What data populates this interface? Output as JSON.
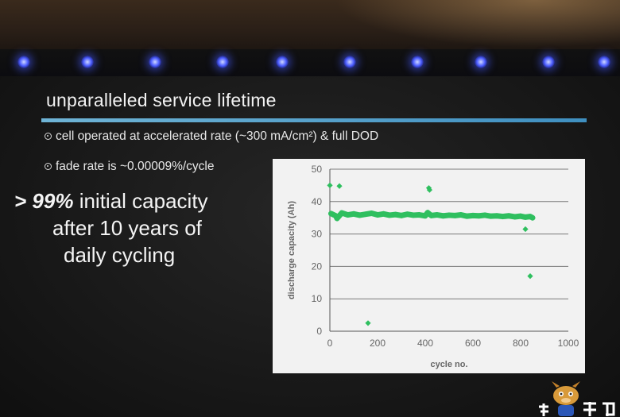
{
  "slide": {
    "title": "unparalleled service lifetime",
    "bullets": [
      "cell operated at accelerated rate (~300 mA/cm²) & full DOD",
      "fade rate is ~0.00009%/cycle"
    ],
    "headline": {
      "prefix": "> ",
      "emphasis": "99%",
      "line1_rest": " initial capacity",
      "line2": "after 10 years of",
      "line3": "daily cycling"
    }
  },
  "colors": {
    "title_rule": "#4a9ccc",
    "series": "#2fbf5f",
    "panel": "#f2f2f2",
    "grid": "#7a7a7a"
  },
  "chart_data": {
    "type": "scatter",
    "xlabel": "cycle no.",
    "ylabel": "discharge capacity (Ah)",
    "xlim": [
      0,
      1000
    ],
    "ylim": [
      0,
      50
    ],
    "x_ticks": [
      0,
      200,
      400,
      600,
      800,
      1000
    ],
    "y_ticks": [
      0,
      10,
      20,
      30,
      40,
      50
    ],
    "grid": "horizontal",
    "series": [
      {
        "color": "#2fbf5f",
        "points": [
          [
            0,
            45.0
          ],
          [
            40,
            44.8
          ],
          [
            415,
            44.2
          ],
          [
            418,
            43.6
          ],
          [
            160,
            2.5
          ],
          [
            820,
            31.5
          ],
          [
            840,
            17.0
          ],
          [
            5,
            36.3
          ],
          [
            25,
            35.6
          ],
          [
            30,
            34.8
          ],
          [
            50,
            36.5
          ],
          [
            75,
            35.9
          ],
          [
            100,
            36.2
          ],
          [
            125,
            35.8
          ],
          [
            150,
            36.1
          ],
          [
            175,
            36.4
          ],
          [
            200,
            35.9
          ],
          [
            225,
            36.2
          ],
          [
            250,
            35.8
          ],
          [
            275,
            36.0
          ],
          [
            300,
            35.7
          ],
          [
            325,
            36.1
          ],
          [
            350,
            35.8
          ],
          [
            375,
            35.9
          ],
          [
            400,
            35.6
          ],
          [
            410,
            36.6
          ],
          [
            425,
            35.7
          ],
          [
            450,
            35.9
          ],
          [
            475,
            35.6
          ],
          [
            500,
            35.8
          ],
          [
            525,
            35.7
          ],
          [
            550,
            35.9
          ],
          [
            575,
            35.5
          ],
          [
            600,
            35.7
          ],
          [
            625,
            35.6
          ],
          [
            650,
            35.8
          ],
          [
            675,
            35.5
          ],
          [
            700,
            35.6
          ],
          [
            725,
            35.4
          ],
          [
            750,
            35.6
          ],
          [
            775,
            35.3
          ],
          [
            800,
            35.5
          ],
          [
            820,
            35.2
          ],
          [
            840,
            35.4
          ],
          [
            850,
            35.0
          ]
        ]
      }
    ]
  }
}
